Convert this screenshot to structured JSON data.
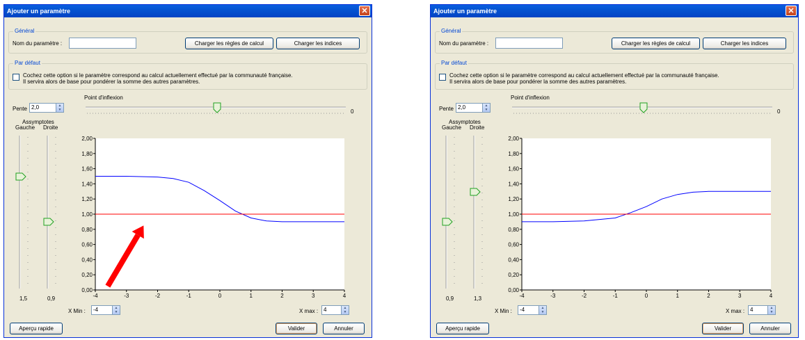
{
  "dialogs": [
    {
      "title": "Ajouter un paramètre",
      "general_group": "Général",
      "param_name_label": "Nom du paramètre :",
      "param_name_value": "",
      "load_rules_button": "Charger les règles de calcul",
      "load_indices_button": "Charger les indices",
      "default_group": "Par défaut",
      "checkbox_line1": "Cochez cette option si le paramètre correspond au calcul actuellement effectué par la communauté française.",
      "checkbox_line2": "Il servira alors de base pour pondérer la somme des autres paramètres.",
      "checkbox_checked": false,
      "slope_label": "Pente",
      "slope_value": "2,0",
      "inflection_label": "Point d'inflexion",
      "inflection_value": "0",
      "inflection_slider_fraction": 0.5,
      "asymptotes_label": "Assymptotes",
      "left_label": "Gauche",
      "right_label": "Droite",
      "left_asymptote_value": "1,5",
      "right_asymptote_value": "0,9",
      "left_slider_fraction": 0.75,
      "right_slider_fraction": 0.45,
      "xmin_label": "X Min :",
      "xmin_value": "-4",
      "xmax_label": "X max :",
      "xmax_value": "4",
      "preview_button": "Aperçu rapide",
      "validate_button": "Valider",
      "cancel_button": "Annuler"
    },
    {
      "title": "Ajouter un paramètre",
      "general_group": "Général",
      "param_name_label": "Nom du paramètre :",
      "param_name_value": "",
      "load_rules_button": "Charger les règles de calcul",
      "load_indices_button": "Charger les indices",
      "default_group": "Par défaut",
      "checkbox_line1": "Cochez cette option si le paramètre correspond au calcul actuellement effectué par la communauté française.",
      "checkbox_line2": "Il servira alors de base pour pondérer la somme des autres paramètres.",
      "checkbox_checked": false,
      "slope_label": "Pente",
      "slope_value": "2,0",
      "inflection_label": "Point d'inflexion",
      "inflection_value": "0",
      "inflection_slider_fraction": 0.5,
      "asymptotes_label": "Assymptotes",
      "left_label": "Gauche",
      "right_label": "Droite",
      "left_asymptote_value": "0,9",
      "right_asymptote_value": "1,3",
      "left_slider_fraction": 0.45,
      "right_slider_fraction": 0.65,
      "xmin_label": "X Min :",
      "xmin_value": "-4",
      "xmax_label": "X max :",
      "xmax_value": "4",
      "preview_button": "Aperçu rapide",
      "validate_button": "Valider",
      "cancel_button": "Annuler"
    }
  ],
  "chart_data": [
    {
      "type": "line",
      "xlim": [
        -4,
        4
      ],
      "ylim": [
        0,
        2
      ],
      "x_ticks": [
        "-4",
        "-3",
        "-2",
        "-1",
        "0",
        "1",
        "2",
        "3",
        "4"
      ],
      "y_ticks": [
        "0,00",
        "0,20",
        "0,40",
        "0,60",
        "0,80",
        "1,00",
        "1,20",
        "1,40",
        "1,60",
        "1,80",
        "2,00"
      ],
      "series": [
        {
          "color": "#0000ff",
          "x": [
            -4,
            -3,
            -2,
            -1.5,
            -1,
            -0.5,
            0,
            0.5,
            1,
            1.5,
            2,
            3,
            4
          ],
          "y": [
            1.5,
            1.5,
            1.49,
            1.47,
            1.42,
            1.31,
            1.18,
            1.04,
            0.95,
            0.91,
            0.9,
            0.9,
            0.9
          ]
        },
        {
          "color": "#ff0000",
          "x": [
            -4,
            4
          ],
          "y": [
            1.0,
            1.0
          ]
        }
      ],
      "annotation": {
        "type": "arrow",
        "color": "#ff0000"
      }
    },
    {
      "type": "line",
      "xlim": [
        -4,
        4
      ],
      "ylim": [
        0,
        2
      ],
      "x_ticks": [
        "-4",
        "-3",
        "-2",
        "-1",
        "0",
        "1",
        "2",
        "3",
        "4"
      ],
      "y_ticks": [
        "0,00",
        "0,20",
        "0,40",
        "0,60",
        "0,80",
        "1,00",
        "1,20",
        "1,40",
        "1,60",
        "1,80",
        "2,00"
      ],
      "series": [
        {
          "color": "#0000ff",
          "x": [
            -4,
            -3,
            -2,
            -1.5,
            -1,
            -0.5,
            0,
            0.5,
            1,
            1.5,
            2,
            3,
            4
          ],
          "y": [
            0.9,
            0.9,
            0.91,
            0.93,
            0.95,
            1.02,
            1.1,
            1.2,
            1.26,
            1.29,
            1.3,
            1.3,
            1.3
          ]
        },
        {
          "color": "#ff0000",
          "x": [
            -4,
            4
          ],
          "y": [
            1.0,
            1.0
          ]
        }
      ]
    }
  ]
}
